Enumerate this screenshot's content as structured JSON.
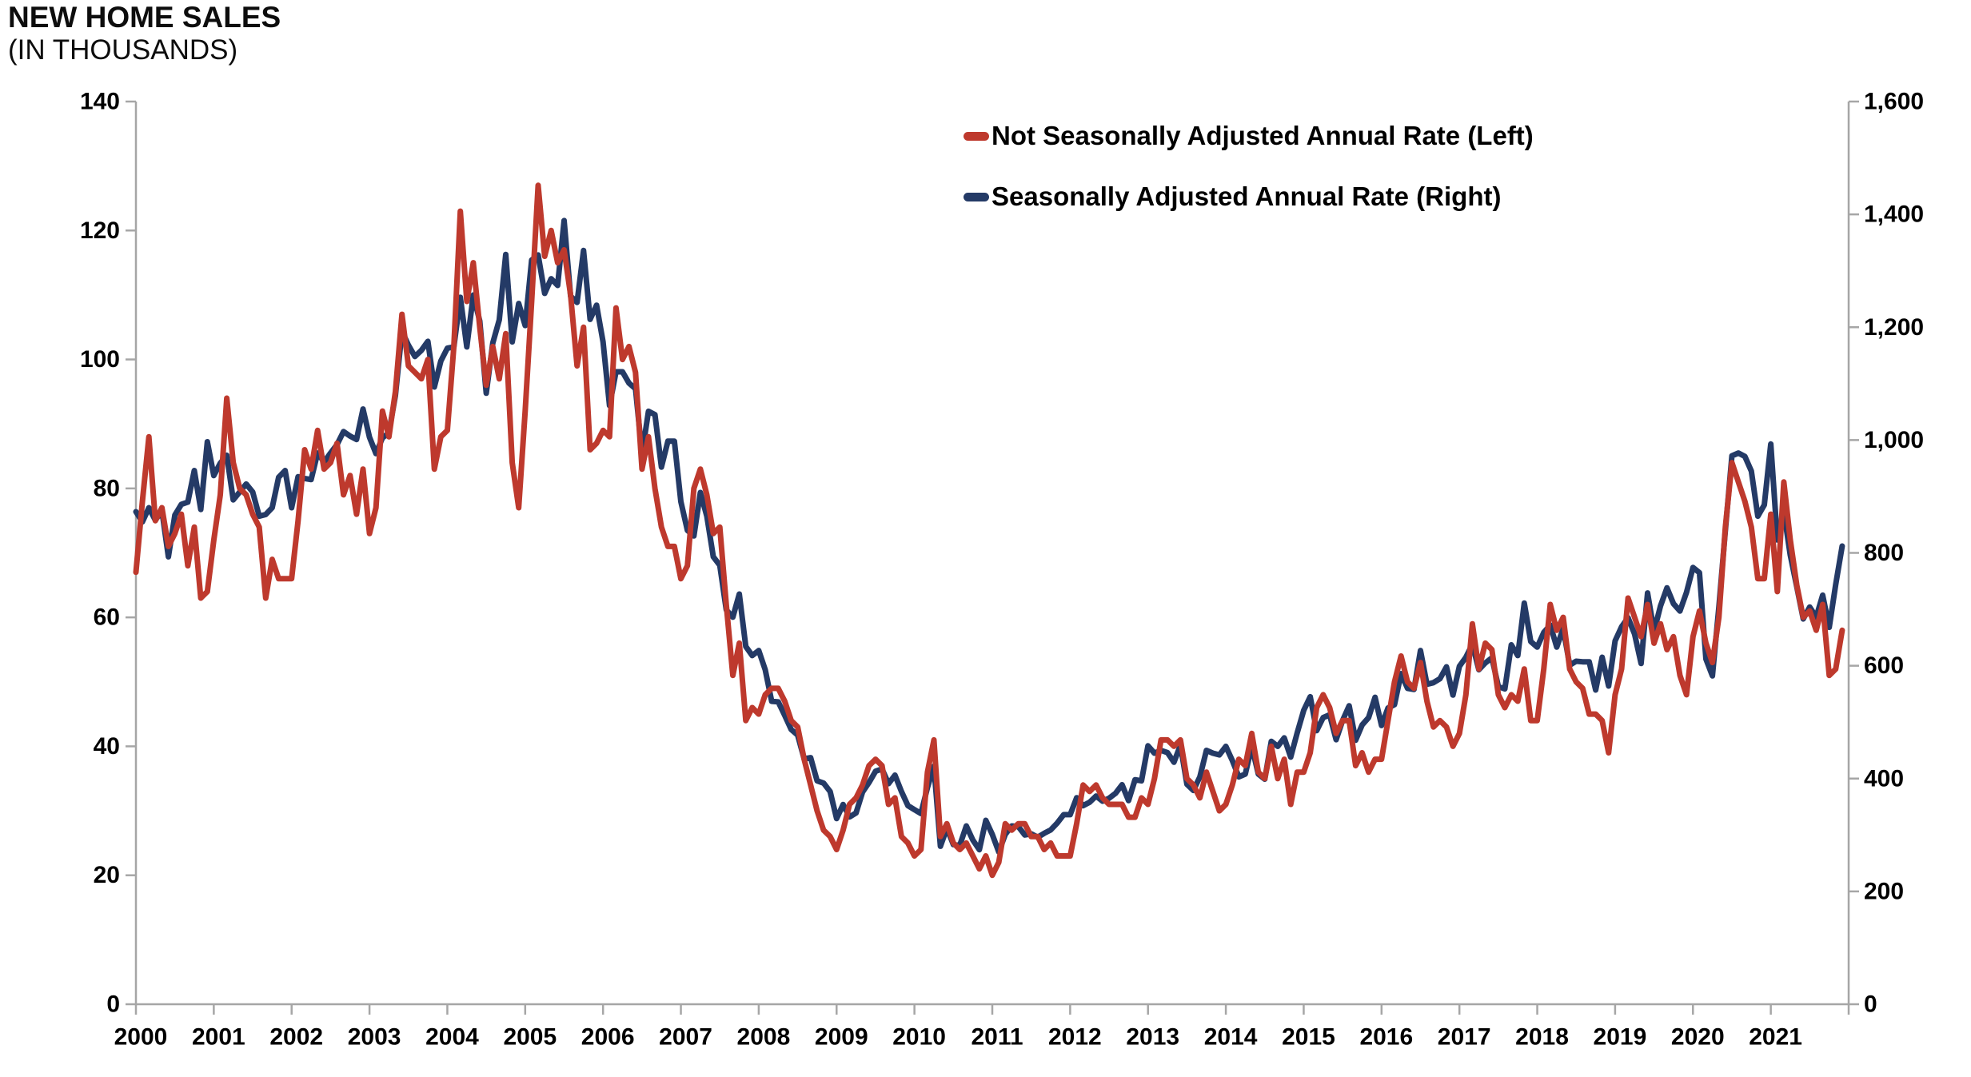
{
  "header": {
    "title": "NEW HOME SALES",
    "subtitle": "(IN THOUSANDS)"
  },
  "legend": [
    {
      "label": "Not Seasonally Adjusted Annual Rate (Left)",
      "color": "#BE392D"
    },
    {
      "label": "Seasonally Adjusted Annual Rate (Right)",
      "color": "#243A66"
    }
  ],
  "colors": {
    "nsa_red": "#BE392D",
    "saar_blue": "#243A66",
    "axis_gray": "#A6A6A6",
    "text_black": "#000000"
  },
  "chart_data": {
    "type": "line",
    "title": "NEW HOME SALES (IN THOUSANDS)",
    "frequency": "monthly",
    "x_start": "2000-01",
    "x_end": "2021-12",
    "grid": false,
    "legend_position": "top-right-inside",
    "left_axis": {
      "min": 0,
      "max": 140,
      "step": 20,
      "labels": [
        "0",
        "20",
        "40",
        "60",
        "80",
        "100",
        "120",
        "140"
      ]
    },
    "right_axis": {
      "min": 0,
      "max": 1600,
      "step": 200,
      "labels": [
        "0",
        "200",
        "400",
        "600",
        "800",
        "1,000",
        "1,200",
        "1,400",
        "1,600"
      ]
    },
    "x_tick_years": [
      "2000",
      "2001",
      "2002",
      "2003",
      "2004",
      "2005",
      "2006",
      "2007",
      "2008",
      "2009",
      "2010",
      "2011",
      "2012",
      "2013",
      "2014",
      "2015",
      "2016",
      "2017",
      "2018",
      "2019",
      "2020",
      "2021"
    ],
    "series": [
      {
        "name": "Seasonally Adjusted Annual Rate (Right)",
        "axis": "right",
        "color": "#243A66",
        "values": [
          873,
          855,
          880,
          858,
          875,
          793,
          867,
          886,
          890,
          946,
          877,
          997,
          937,
          959,
          973,
          894,
          908,
          922,
          908,
          865,
          868,
          880,
          934,
          946,
          880,
          935,
          932,
          930,
          977,
          961,
          977,
          992,
          1015,
          1007,
          1001,
          1055,
          1005,
          976,
          1004,
          1013,
          1079,
          1193,
          1168,
          1148,
          1159,
          1175,
          1094,
          1140,
          1163,
          1165,
          1253,
          1165,
          1257,
          1211,
          1083,
          1172,
          1213,
          1329,
          1174,
          1242,
          1203,
          1319,
          1328,
          1260,
          1286,
          1274,
          1389,
          1255,
          1244,
          1336,
          1214,
          1239,
          1174,
          1061,
          1121,
          1121,
          1101,
          1091,
          975,
          1051,
          1045,
          952,
          998,
          998,
          891,
          840,
          830,
          907,
          865,
          793,
          778,
          699,
          686,
          727,
          634,
          618,
          627,
          593,
          537,
          536,
          512,
          487,
          477,
          435,
          437,
          396,
          392,
          377,
          329,
          354,
          332,
          339,
          376,
          393,
          413,
          417,
          391,
          406,
          377,
          352,
          345,
          338,
          384,
          422,
          280,
          312,
          283,
          282,
          316,
          291,
          274,
          326,
          301,
          270,
          301,
          316,
          315,
          300,
          302,
          296,
          303,
          309,
          321,
          336,
          336,
          366,
          352,
          358,
          369,
          360,
          365,
          374,
          389,
          361,
          398,
          396,
          458,
          445,
          450,
          446,
          429,
          459,
          390,
          379,
          403,
          450,
          445,
          442,
          457,
          432,
          403,
          408,
          457,
          408,
          399,
          466,
          457,
          472,
          438,
          481,
          521,
          545,
          485,
          508,
          513,
          469,
          503,
          529,
          468,
          495,
          508,
          544,
          494,
          525,
          531,
          586,
          560,
          558,
          627,
          567,
          570,
          577,
          598,
          548,
          599,
          615,
          638,
          593,
          605,
          614,
          563,
          559,
          637,
          618,
          711,
          643,
          633,
          659,
          672,
          633,
          666,
          601,
          608,
          607,
          607,
          557,
          615,
          564,
          644,
          669,
          685,
          656,
          604,
          729,
          661,
          706,
          738,
          710,
          697,
          730,
          774,
          765,
          612,
          582,
          704,
          840,
          972,
          977,
          971,
          945,
          865,
          885,
          993,
          823,
          873,
          796,
          740,
          683,
          704,
          686,
          725,
          668,
          744,
          812
        ]
      },
      {
        "name": "Not Seasonally Adjusted Annual Rate (Left)",
        "axis": "left",
        "color": "#BE392D",
        "values": [
          67,
          78,
          88,
          75,
          77,
          71,
          73,
          76,
          68,
          74,
          63,
          64,
          72,
          79,
          94,
          84,
          80,
          79,
          76,
          74,
          63,
          69,
          66,
          66,
          66,
          75,
          86,
          83,
          89,
          83,
          84,
          87,
          79,
          82,
          76,
          83,
          73,
          77,
          92,
          88,
          95,
          107,
          99,
          98,
          97,
          100,
          83,
          88,
          89,
          102,
          123,
          109,
          115,
          105,
          96,
          102,
          97,
          104,
          84,
          77,
          92,
          109,
          127,
          116,
          120,
          115,
          117,
          110,
          99,
          105,
          86,
          87,
          89,
          88,
          108,
          100,
          102,
          98,
          83,
          88,
          80,
          74,
          71,
          71,
          66,
          68,
          80,
          83,
          79,
          73,
          74,
          62,
          51,
          56,
          44,
          46,
          45,
          48,
          49,
          49,
          47,
          44,
          43,
          38,
          34,
          30,
          27,
          26,
          24,
          27,
          31,
          32,
          34,
          37,
          38,
          37,
          31,
          32,
          26,
          25,
          23,
          24,
          36,
          41,
          26,
          28,
          25,
          24,
          25,
          23,
          21,
          23,
          20,
          22,
          28,
          27,
          28,
          28,
          26,
          26,
          24,
          25,
          23,
          23,
          23,
          28,
          34,
          33,
          34,
          32,
          31,
          31,
          31,
          29,
          29,
          32,
          31,
          35,
          41,
          41,
          40,
          41,
          35,
          34,
          32,
          36,
          33,
          30,
          31,
          34,
          38,
          37,
          42,
          36,
          35,
          40,
          35,
          38,
          31,
          36,
          36,
          39,
          46,
          48,
          46,
          42,
          44,
          44,
          37,
          39,
          36,
          38,
          38,
          44,
          50,
          54,
          50,
          49,
          53,
          47,
          43,
          44,
          43,
          40,
          42,
          48,
          59,
          52,
          56,
          55,
          48,
          46,
          48,
          47,
          52,
          44,
          44,
          52,
          62,
          58,
          60,
          52,
          50,
          49,
          45,
          45,
          44,
          39,
          48,
          52,
          63,
          60,
          57,
          62,
          56,
          59,
          55,
          57,
          51,
          48,
          57,
          61,
          56,
          53,
          60,
          74,
          84,
          81,
          78,
          74,
          66,
          66,
          76,
          64,
          81,
          72,
          65,
          60,
          61,
          58,
          62,
          51,
          52,
          58
        ]
      }
    ]
  }
}
